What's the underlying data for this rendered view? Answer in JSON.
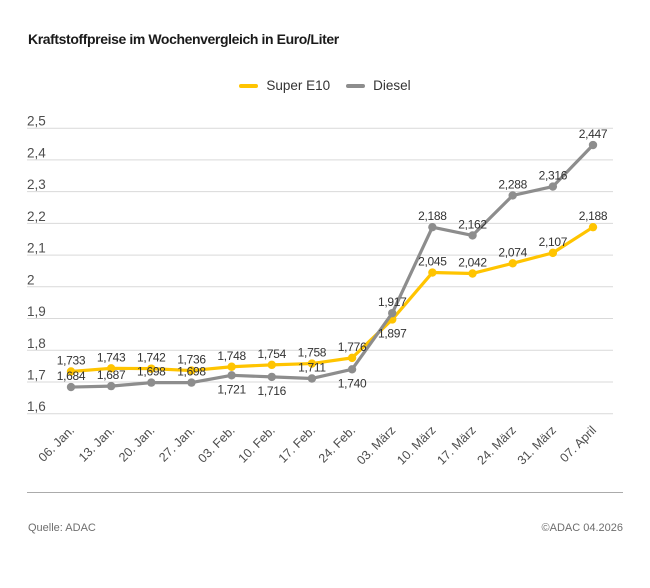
{
  "title": "Kraftstoffpreise im Wochenvergleich in Euro/Liter",
  "legend": [
    {
      "label": "Super E10",
      "color": "#FFC400"
    },
    {
      "label": "Diesel",
      "color": "#8D8D8D"
    }
  ],
  "footer": {
    "source": "Quelle: ADAC",
    "copyright": "©ADAC 04.2026"
  },
  "colors": {
    "grid": "#d9d9d9",
    "axis_text": "#4d4d4d",
    "data_label": "#333333",
    "separator": "#ababab"
  },
  "chart_data": {
    "type": "line",
    "title": "Kraftstoffpreise im Wochenvergleich in Euro/Liter",
    "categories": [
      "06. Jan.",
      "13. Jan.",
      "20. Jan.",
      "27. Jan.",
      "03. Feb.",
      "10. Feb.",
      "17. Feb.",
      "24. Feb.",
      "03. März",
      "10. März",
      "17. März",
      "24. März",
      "31. März",
      "07. April"
    ],
    "series": [
      {
        "name": "Super E10",
        "color": "#FFC400",
        "values": [
          1.733,
          1.743,
          1.742,
          1.736,
          1.748,
          1.754,
          1.758,
          1.776,
          1.897,
          2.045,
          2.042,
          2.074,
          2.107,
          2.188
        ],
        "label_pos": [
          "above",
          "above",
          "above",
          "above",
          "above",
          "above",
          "above",
          "above",
          "below",
          "above",
          "above",
          "above",
          "above",
          "above"
        ]
      },
      {
        "name": "Diesel",
        "color": "#8D8D8D",
        "values": [
          1.684,
          1.687,
          1.698,
          1.698,
          1.721,
          1.716,
          1.711,
          1.74,
          1.917,
          2.188,
          2.162,
          2.288,
          2.316,
          2.447
        ],
        "label_pos": [
          "above",
          "above",
          "above",
          "above",
          "below",
          "below",
          "above",
          "below",
          "above",
          "above",
          "above",
          "above",
          "above",
          "above"
        ]
      }
    ],
    "ylim": [
      1.6,
      2.5
    ],
    "ytick_step": 0.1,
    "grid": true,
    "legend_position": "top-center",
    "unit": "Euro/Liter"
  }
}
